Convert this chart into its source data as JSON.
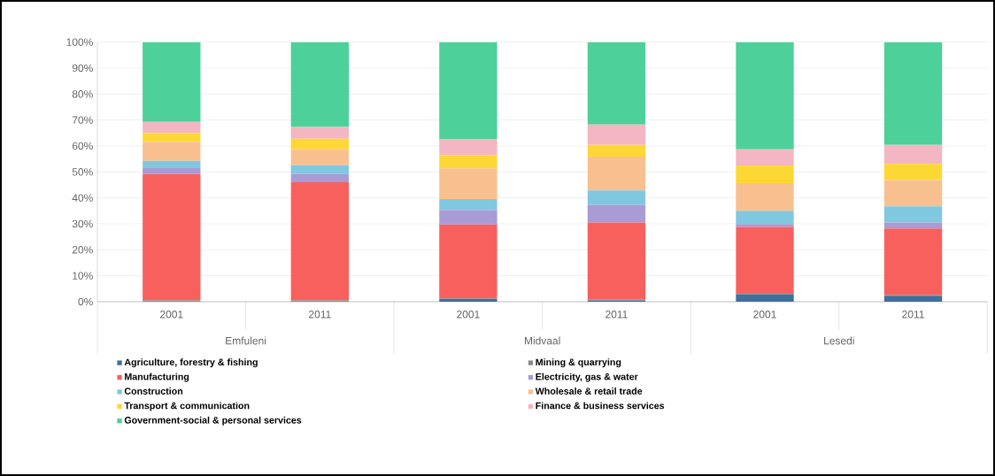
{
  "chart_data": {
    "type": "bar",
    "stacked": true,
    "categories": [
      "2001",
      "2011",
      "2001",
      "2011",
      "2001",
      "2011"
    ],
    "annotations": [
      "Emfuleni",
      "Midvaal",
      "Lesedi"
    ],
    "ylim": [
      0,
      100
    ],
    "yticks": [
      {
        "value": 0,
        "label": "0%"
      },
      {
        "value": 10,
        "label": "10%"
      },
      {
        "value": 20,
        "label": "20%"
      },
      {
        "value": 30,
        "label": "30%"
      },
      {
        "value": 40,
        "label": "40%"
      },
      {
        "value": 50,
        "label": "50%"
      },
      {
        "value": 60,
        "label": "60%"
      },
      {
        "value": 70,
        "label": "70%"
      },
      {
        "value": 80,
        "label": "80%"
      },
      {
        "value": 90,
        "label": "90%"
      },
      {
        "value": 100,
        "label": "100%"
      }
    ],
    "grid": "y",
    "legend": "bottom",
    "series": [
      {
        "name": "Agriculture, forestry & fishing",
        "color": "#3f6f9a",
        "values": [
          0.2,
          0.2,
          1.0,
          0.5,
          2.8,
          2.3
        ]
      },
      {
        "name": "Mining & quarrying",
        "color": "#8c8c8c",
        "values": [
          0.3,
          0.3,
          0.3,
          0.3,
          0.3,
          0.3
        ]
      },
      {
        "name": "Manufacturing",
        "color": "#f8605e",
        "values": [
          48.7,
          45.5,
          28.4,
          29.7,
          25.7,
          25.6
        ]
      },
      {
        "name": "Electricity, gas & water",
        "color": "#a99bd6",
        "values": [
          2.3,
          3.2,
          5.6,
          6.8,
          1.1,
          2.3
        ]
      },
      {
        "name": "Construction",
        "color": "#7fc8e0",
        "values": [
          2.8,
          3.4,
          4.2,
          5.6,
          5.1,
          6.2
        ]
      },
      {
        "name": "Wholesale & retail trade",
        "color": "#f9c08f",
        "values": [
          7.3,
          6.2,
          11.9,
          13.0,
          10.7,
          10.2
        ]
      },
      {
        "name": "Transport & communication",
        "color": "#fdd835",
        "values": [
          3.4,
          4.0,
          5.1,
          4.5,
          6.8,
          6.2
        ]
      },
      {
        "name": "Finance & business services",
        "color": "#f4b6c2",
        "values": [
          4.3,
          4.5,
          6.2,
          7.9,
          6.2,
          7.3
        ]
      },
      {
        "name": "Government-social & personal services",
        "color": "#4dd09a",
        "values": [
          30.7,
          32.7,
          37.3,
          31.7,
          41.3,
          39.6
        ]
      }
    ]
  }
}
